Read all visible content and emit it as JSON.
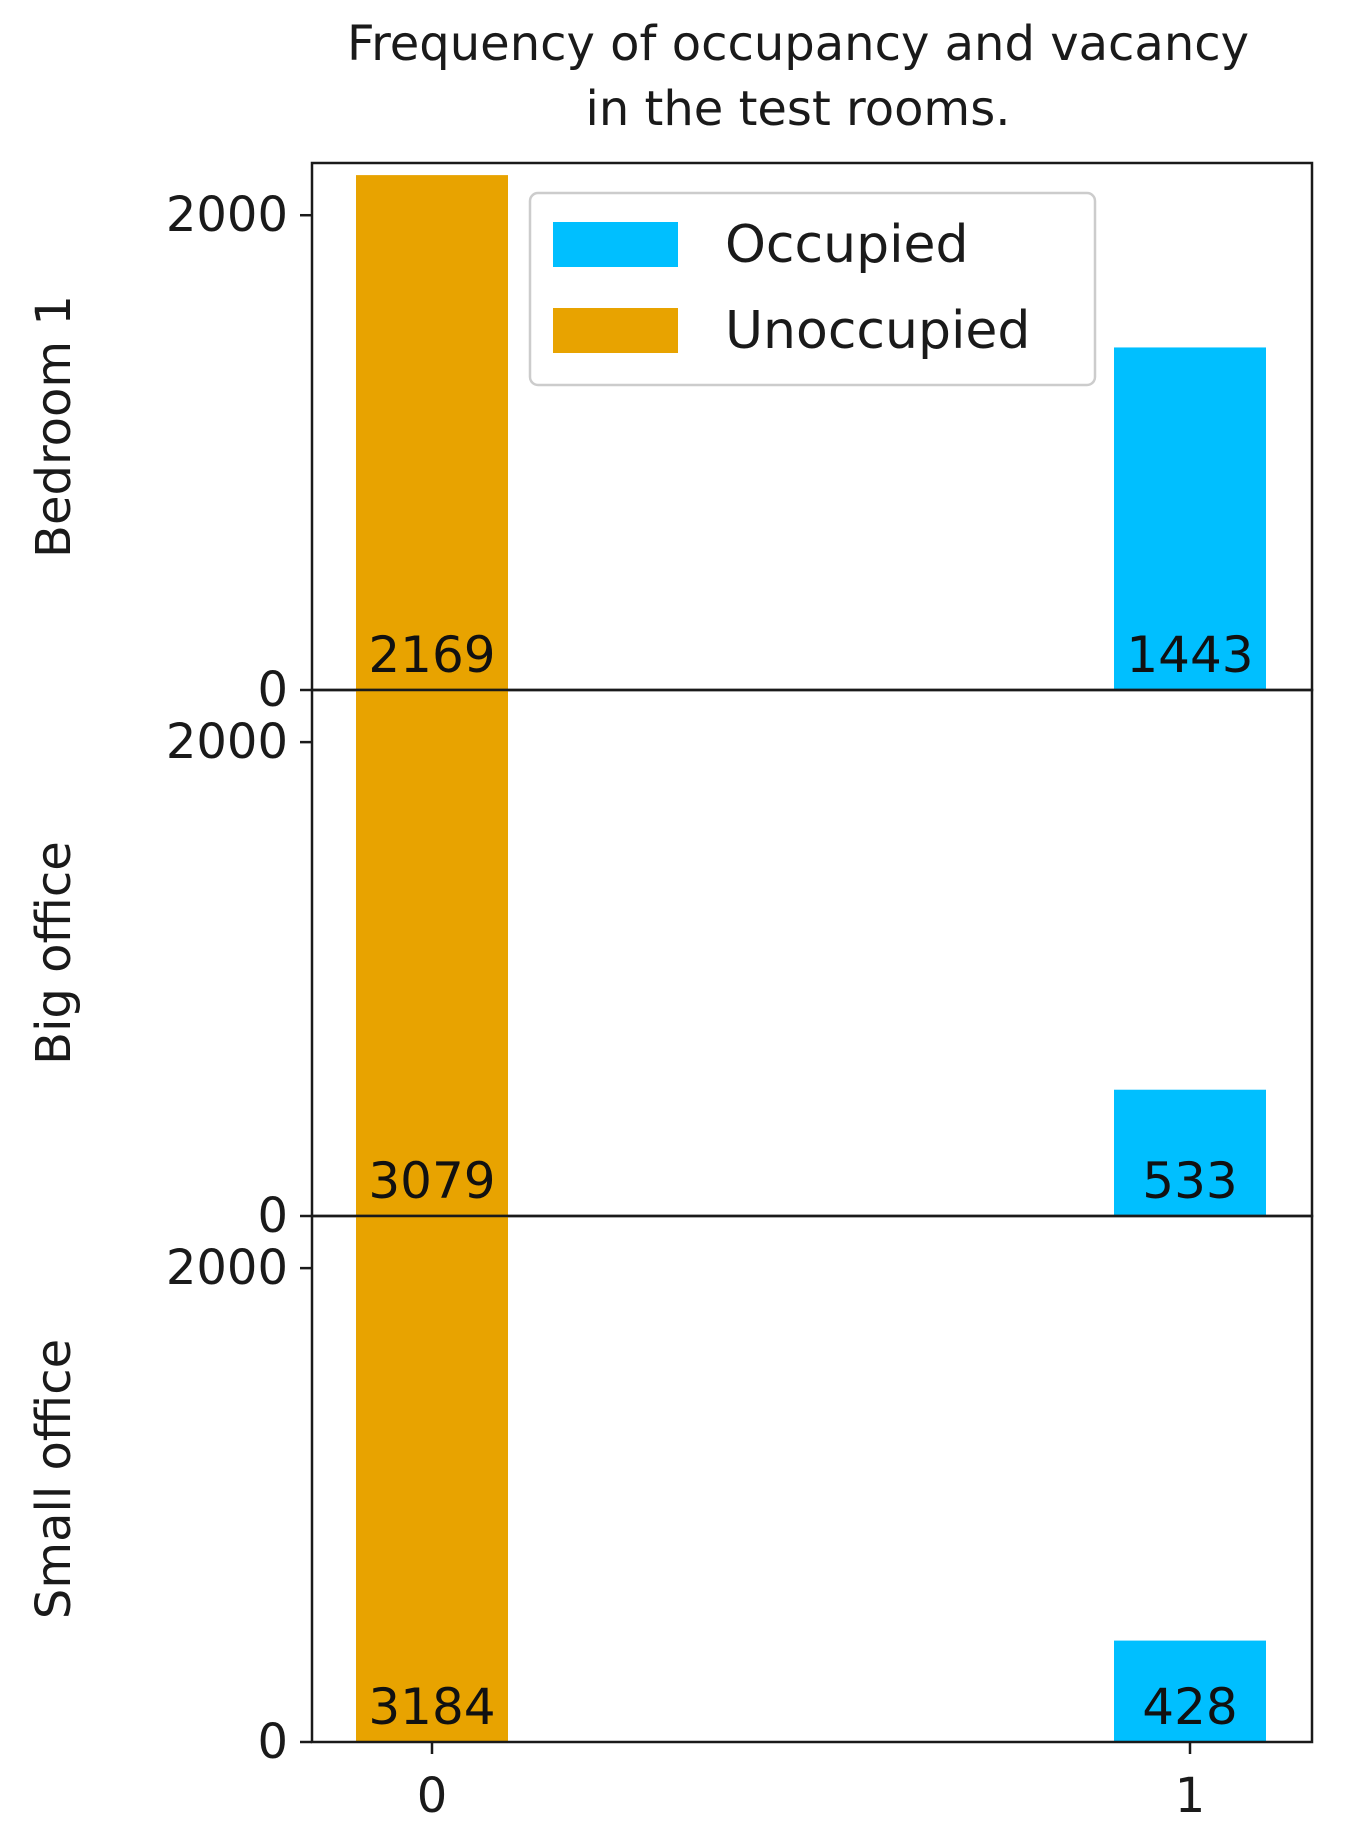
{
  "chart_data": {
    "type": "bar",
    "title_lines": [
      "Frequency of occupancy and vacancy",
      "in the test rooms."
    ],
    "categories": [
      "0",
      "1"
    ],
    "colors": {
      "occupied": "#00BFFF",
      "unoccupied": "#E8A300",
      "axis": "#1a1a1a"
    },
    "legend": {
      "placement": "top-right of first panel",
      "entries": [
        {
          "label": "Occupied",
          "color": "#00BFFF"
        },
        {
          "label": "Unoccupied",
          "color": "#E8A300"
        }
      ]
    },
    "ylim": [
      0,
      2220
    ],
    "yticks": [
      0,
      2000
    ],
    "ytick_labels": [
      "0",
      "2000"
    ],
    "panels": [
      {
        "ylabel": "Bedroom 1",
        "unoccupied": 2169,
        "occupied": 1443,
        "labels": [
          "2169",
          "1443"
        ]
      },
      {
        "ylabel": "Big office",
        "unoccupied": 3079,
        "occupied": 533,
        "labels": [
          "3079",
          "533"
        ]
      },
      {
        "ylabel": "Small office",
        "unoccupied": 3184,
        "occupied": 428,
        "labels": [
          "3184",
          "428"
        ]
      }
    ]
  }
}
